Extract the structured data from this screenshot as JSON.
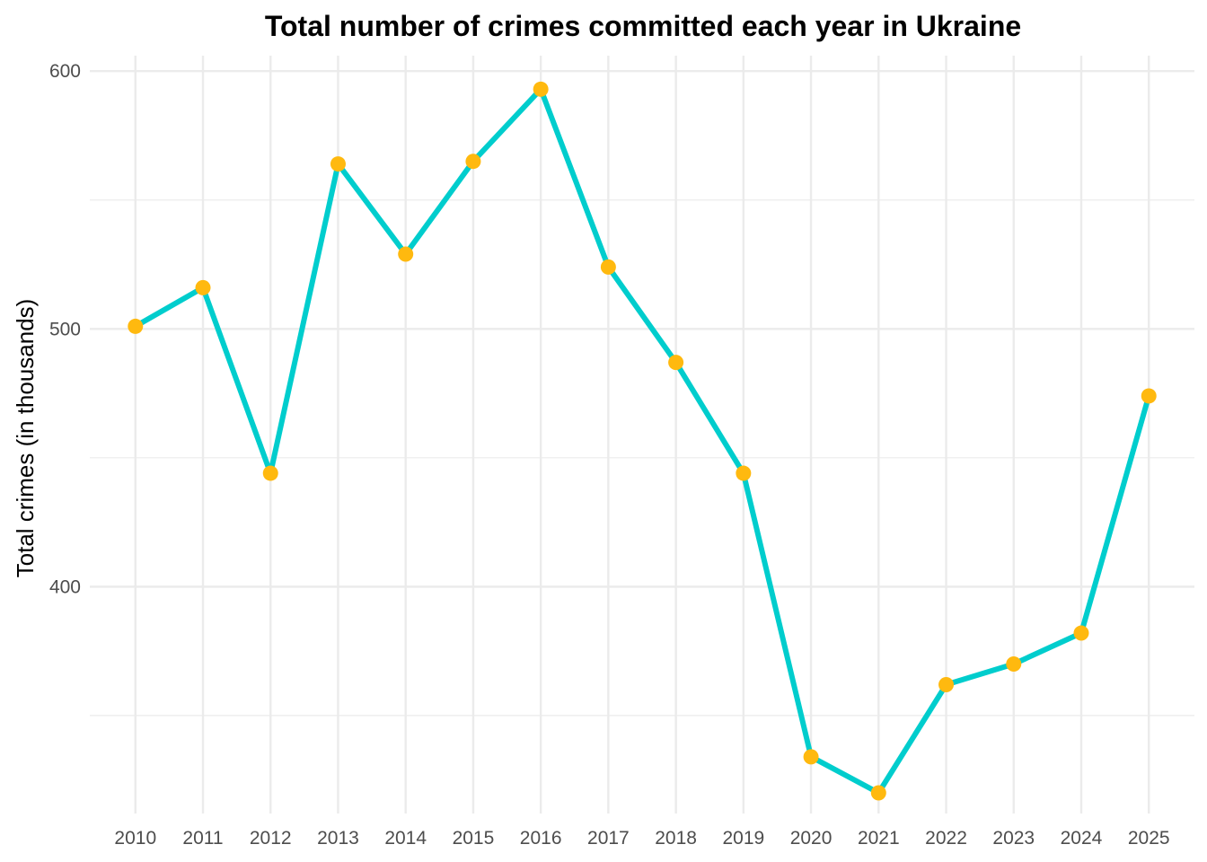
{
  "chart_data": {
    "type": "line",
    "title": "Total number of crimes committed each year in Ukraine",
    "xlabel": "",
    "ylabel": "Total crimes (in thousands)",
    "x": [
      2010,
      2011,
      2012,
      2013,
      2014,
      2015,
      2016,
      2017,
      2018,
      2019,
      2020,
      2021,
      2022,
      2023,
      2024,
      2025
    ],
    "x_tick_labels": [
      "2010",
      "2011",
      "2012",
      "2013",
      "2014",
      "2015",
      "2016",
      "2017",
      "2018",
      "2019",
      "2020",
      "2021",
      "2022",
      "2023",
      "2024",
      "2025"
    ],
    "series": [
      {
        "values": [
          501,
          516,
          444,
          564,
          529,
          565,
          593,
          524,
          487,
          444,
          334,
          320,
          362,
          370,
          382,
          474
        ]
      }
    ],
    "y_ticks": [
      400,
      500,
      600
    ],
    "y_tick_labels": [
      "400",
      "500",
      "600"
    ],
    "ylim": [
      312,
      606
    ],
    "grid": true,
    "legend": "none",
    "line_color": "#00CDCD",
    "point_color": "#FFB90F",
    "grid_color": "#EBEBEB"
  }
}
